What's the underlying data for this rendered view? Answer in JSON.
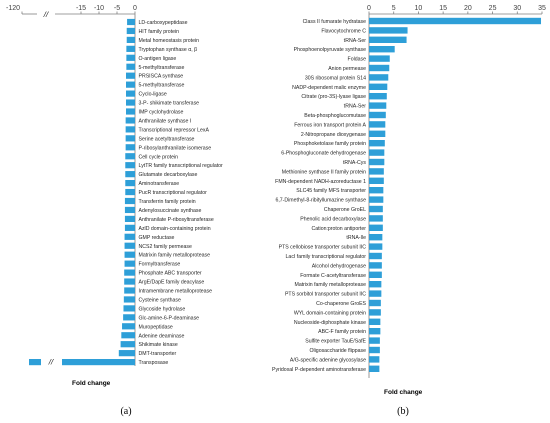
{
  "chart_data": [
    {
      "type": "bar",
      "orientation": "horizontal",
      "panel_label": "(a)",
      "xlabel": "Fold change",
      "ylabel": "",
      "title": "",
      "axis_break": "//",
      "xticks": [
        "-120",
        "-15",
        "-10",
        "-5",
        "0"
      ],
      "xlim": [
        -120,
        0
      ],
      "categories": [
        "LD-carboxypeptidase",
        "HIT family protein",
        "Metal homeostasis protein",
        "Tryptophan synthase α, β",
        "O-antigen ligase",
        "5-methyltransferase",
        "PRSISCA synthase",
        "5-methyltransferase",
        "Cyclo-ligase",
        "3-P- shikimate transferase",
        "IMP cyclohydrolase",
        "Anthranilate synthase I",
        "Transcriptional repressor LexA",
        "Serine acetyltransferase",
        "P-ribosylanthranilate isomerase",
        "Cell cycle protein",
        "LytTR family transcriptional regulator",
        "Glutamate decarboxylase",
        "Aminotransferase",
        "PucR transcriptional regulator",
        "Transferrin family protein",
        "Adenylosuccinate synthase",
        "Anthranilate P-ribosyltransferase",
        "AzlD domain-containing protein",
        "GMP reductase",
        "NCS2 family permease",
        "Matrixin family metalloprotease",
        "Formyltransferase",
        "Phosphate ABC transporter",
        "ArgE/DapE family deacylase",
        "Intramembrane metalloprotease",
        "Cysteine synthase",
        "Glycoside hydrolase",
        "Glc-amine-6-P-deaminase",
        "Muropeptidase",
        "Adenine deaminase",
        "Shikimate kinase",
        "DMT-transporter",
        "Transposase"
      ],
      "values": [
        -2.2,
        -2.3,
        -2.3,
        -2.4,
        -2.4,
        -2.4,
        -2.5,
        -2.5,
        -2.5,
        -2.5,
        -2.5,
        -2.6,
        -2.6,
        -2.6,
        -2.6,
        -2.7,
        -2.7,
        -2.7,
        -2.7,
        -2.7,
        -2.8,
        -2.8,
        -2.8,
        -2.8,
        -2.9,
        -2.9,
        -2.9,
        -2.9,
        -3.0,
        -3.0,
        -3.0,
        -3.1,
        -3.2,
        -3.3,
        -3.6,
        -3.8,
        -4.0,
        -4.5,
        -120
      ],
      "color": "#2e9fd8"
    },
    {
      "type": "bar",
      "orientation": "horizontal",
      "panel_label": "(b)",
      "xlabel": "Fold change",
      "ylabel": "",
      "title": "",
      "xticks": [
        "0",
        "5",
        "10",
        "15",
        "20",
        "25",
        "30",
        "35"
      ],
      "xlim": [
        0,
        35
      ],
      "categories": [
        "Class II fumarate hydratase",
        "Flavocytochrome C",
        "tRNA-Ser",
        "Phosphoenolpyruvate synthase",
        "Foldase",
        "Anion permease",
        "30S ribosomal protein S14",
        "NADP-dependent malic enzyme",
        "Citrate (pro-3S)-lyase ligase",
        "tRNA-Ser",
        "Beta-phosphoglucomutase",
        "Ferrous iron transport protein A",
        "2-Nitropropane dioxygenase",
        "Phosphoketolase family protein",
        "6-Phosphogluconate dehydrogenase",
        "tRNA-Cys",
        "Methionine synthase II family protein",
        "FMN-dependent NADH-azoreductase 1",
        "SLC45 family MFS transporter",
        "6,7-Dimethyl-8-ribityllumazine synthase",
        "Chaperone GroEL",
        "Phenolic acid decarboxylase",
        "Cation:proton antiporter",
        "tRNA-Ile",
        "PTS cellobiose transporter subunit IIC",
        "LacI family transcriptional regulator",
        "Alcohol dehydrogenase",
        "Formate C-acetyltransferase",
        "Matrixin family metalloprotease",
        "PTS sorbitol transporter subunit IIC",
        "Co-chaperone GroES",
        "WYL domain-containing protein",
        "Nucleoside-diphosphate kinase",
        "ABC-F family protein",
        "Sulfite exporter TauE/SafE",
        "Oligosaccharide flippase",
        "A/G-specific adenine glycosylase",
        "Pyridoxal P-dependent aminotransferase"
      ],
      "values": [
        34.8,
        7.8,
        7.6,
        5.2,
        4.2,
        4.1,
        3.9,
        3.7,
        3.6,
        3.5,
        3.4,
        3.3,
        3.3,
        3.2,
        3.1,
        3.1,
        3.0,
        3.0,
        2.9,
        2.9,
        2.8,
        2.8,
        2.8,
        2.7,
        2.7,
        2.6,
        2.6,
        2.6,
        2.5,
        2.5,
        2.4,
        2.4,
        2.3,
        2.3,
        2.2,
        2.2,
        2.1,
        2.1
      ],
      "color": "#2e9fd8"
    }
  ]
}
